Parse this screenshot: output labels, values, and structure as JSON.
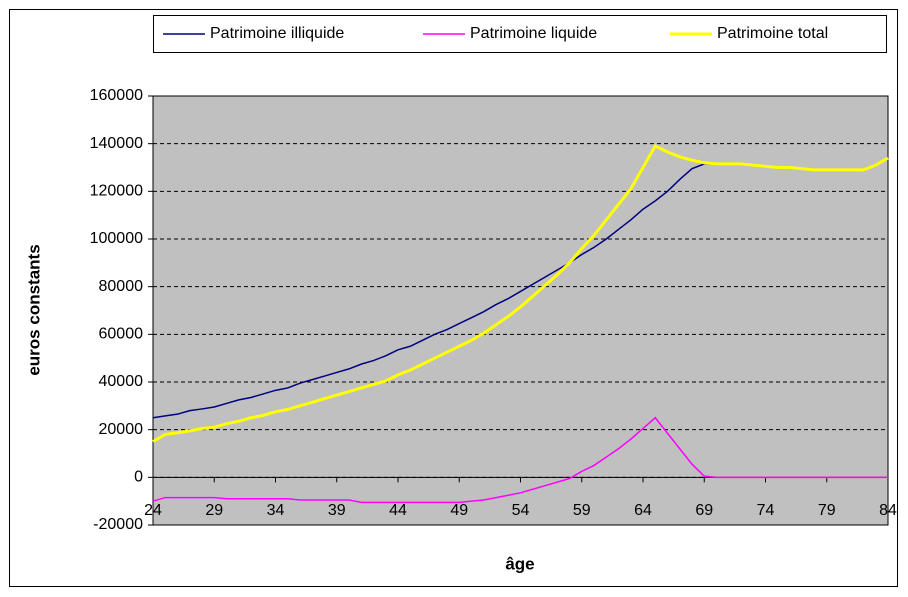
{
  "chart_data": {
    "type": "line",
    "x_label": "âge",
    "y_label": "euros constants",
    "x": [
      24,
      25,
      26,
      27,
      28,
      29,
      30,
      31,
      32,
      33,
      34,
      35,
      36,
      37,
      38,
      39,
      40,
      41,
      42,
      43,
      44,
      45,
      46,
      47,
      48,
      49,
      50,
      51,
      52,
      53,
      54,
      55,
      56,
      57,
      58,
      59,
      60,
      61,
      62,
      63,
      64,
      65,
      66,
      67,
      68,
      69,
      70,
      71,
      72,
      73,
      74,
      75,
      76,
      77,
      78,
      79,
      80,
      81,
      82,
      83,
      84
    ],
    "xlim": [
      24,
      84
    ],
    "xticks": [
      24,
      29,
      34,
      39,
      44,
      49,
      54,
      59,
      64,
      69,
      74,
      79,
      84
    ],
    "ylim": [
      -20000,
      160000
    ],
    "yticks": [
      -20000,
      0,
      20000,
      40000,
      60000,
      80000,
      100000,
      120000,
      140000,
      160000
    ],
    "grid": true,
    "legend": "top",
    "series": [
      {
        "name": "Patrimoine illiquide",
        "color": "#000080",
        "values": [
          25000,
          25800,
          26500,
          28000,
          28700,
          29500,
          31000,
          32500,
          33500,
          35000,
          36500,
          37500,
          39500,
          41000,
          42500,
          44000,
          45500,
          47500,
          49000,
          51000,
          53500,
          55000,
          57500,
          60000,
          62000,
          64500,
          67000,
          69500,
          72500,
          75000,
          78000,
          81000,
          84000,
          87000,
          90000,
          93500,
          96500,
          100000,
          104000,
          108000,
          112500,
          116000,
          120000,
          125000,
          129500,
          131500,
          131500,
          131500,
          131500,
          131000,
          130500,
          130000,
          130000,
          129500,
          129000,
          129000,
          129000,
          129000,
          129000,
          131000,
          134000
        ]
      },
      {
        "name": "Patrimoine liquide",
        "color": "#ff00ff",
        "values": [
          -10000,
          -8500,
          -8500,
          -8500,
          -8500,
          -8500,
          -9000,
          -9000,
          -9000,
          -9000,
          -9000,
          -9000,
          -9500,
          -9500,
          -9500,
          -9500,
          -9500,
          -10500,
          -10500,
          -10500,
          -10500,
          -10500,
          -10500,
          -10500,
          -10500,
          -10500,
          -10000,
          -9500,
          -8500,
          -7500,
          -6500,
          -5000,
          -3500,
          -2000,
          -500,
          2500,
          5000,
          8500,
          12000,
          16000,
          20500,
          25000,
          18500,
          12000,
          5500,
          500,
          0,
          0,
          0,
          0,
          0,
          0,
          0,
          0,
          0,
          0,
          0,
          0,
          0,
          0,
          0
        ]
      },
      {
        "name": "Patrimoine total",
        "color": "#ffff00",
        "values": [
          15000,
          18000,
          18700,
          19500,
          20500,
          21000,
          22500,
          23500,
          25000,
          26000,
          27500,
          28500,
          30000,
          31500,
          33000,
          34500,
          36000,
          37500,
          39000,
          40500,
          43000,
          45000,
          47500,
          50000,
          52500,
          55000,
          57500,
          60500,
          64000,
          67500,
          71500,
          76000,
          80500,
          85000,
          90000,
          96000,
          101500,
          108000,
          114500,
          121000,
          130000,
          139000,
          136500,
          134500,
          133000,
          132000,
          131500,
          131500,
          131500,
          131000,
          130500,
          130000,
          130000,
          129500,
          129000,
          129000,
          129000,
          129000,
          129000,
          131000,
          134000
        ]
      }
    ]
  }
}
